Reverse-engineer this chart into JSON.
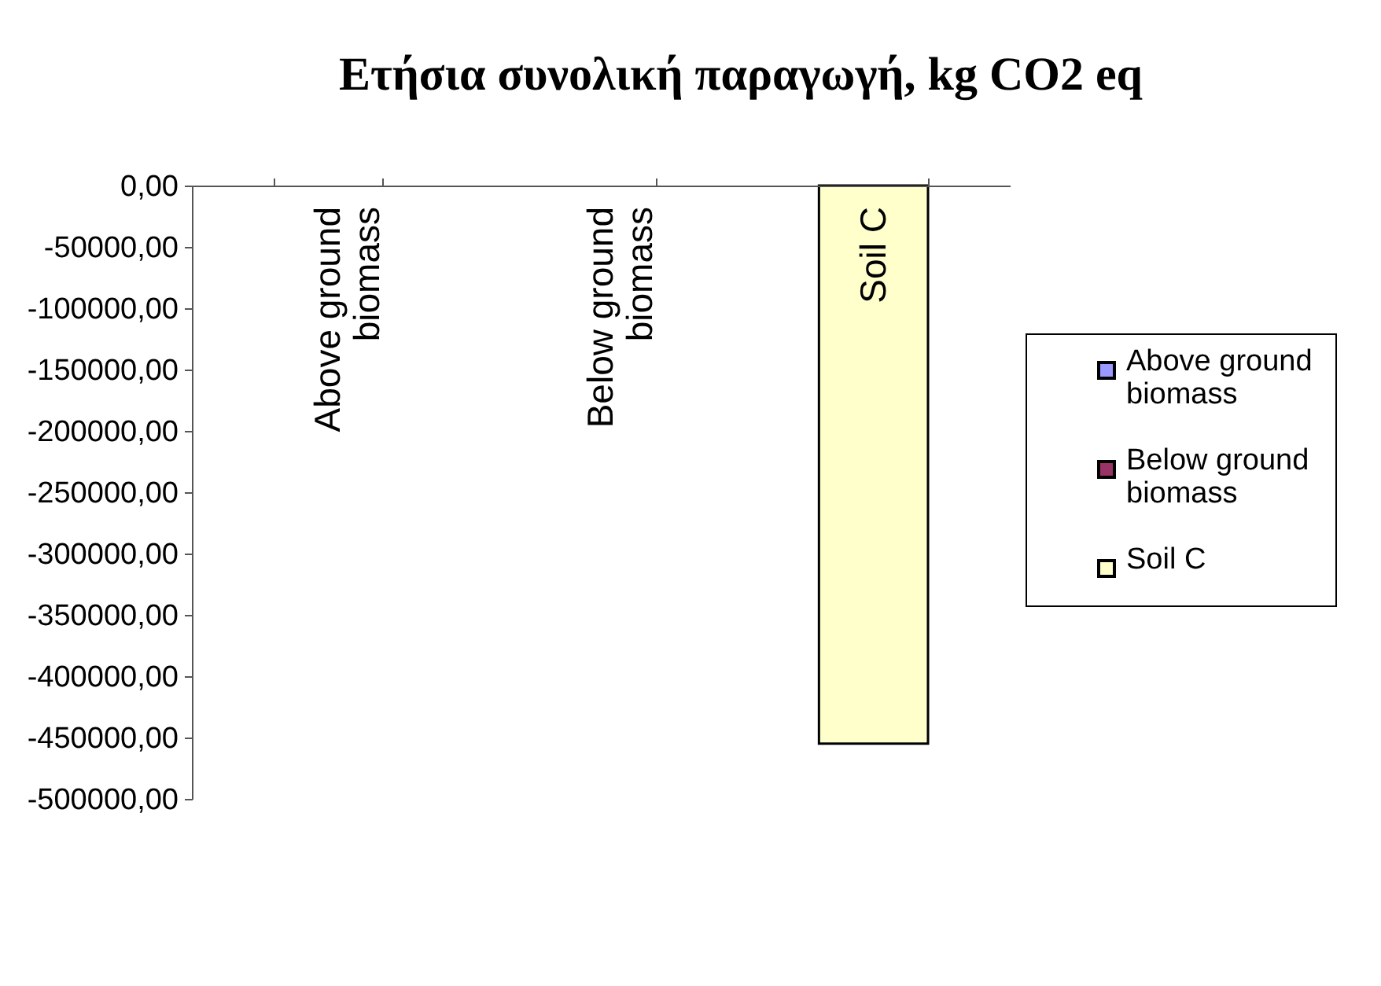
{
  "chart_data": {
    "type": "bar",
    "title": "Ετήσια συνολική παραγωγή, kg CO2 eq",
    "categories": [
      "Above ground biomass",
      "Below ground biomass",
      "Soil C"
    ],
    "series": [
      {
        "name": "Above ground biomass",
        "color": "#9999ff",
        "values": [
          null,
          null,
          null
        ]
      },
      {
        "name": "Below ground biomass",
        "color": "#993366",
        "values": [
          null,
          null,
          null
        ]
      },
      {
        "name": "Soil C",
        "color": "#ffffcc",
        "values": [
          null,
          null,
          -455000
        ]
      }
    ],
    "ylim": [
      -500000,
      0
    ],
    "yticks": [
      {
        "value": 0,
        "label": "0,00"
      },
      {
        "value": -50000,
        "label": "-50000,00"
      },
      {
        "value": -100000,
        "label": "-100000,00"
      },
      {
        "value": -150000,
        "label": "-150000,00"
      },
      {
        "value": -200000,
        "label": "-200000,00"
      },
      {
        "value": -250000,
        "label": "-250000,00"
      },
      {
        "value": -300000,
        "label": "-300000,00"
      },
      {
        "value": -350000,
        "label": "-350000,00"
      },
      {
        "value": -400000,
        "label": "-400000,00"
      },
      {
        "value": -450000,
        "label": "-450000,00"
      },
      {
        "value": -500000,
        "label": "-500000,00"
      }
    ],
    "legend": "right"
  }
}
